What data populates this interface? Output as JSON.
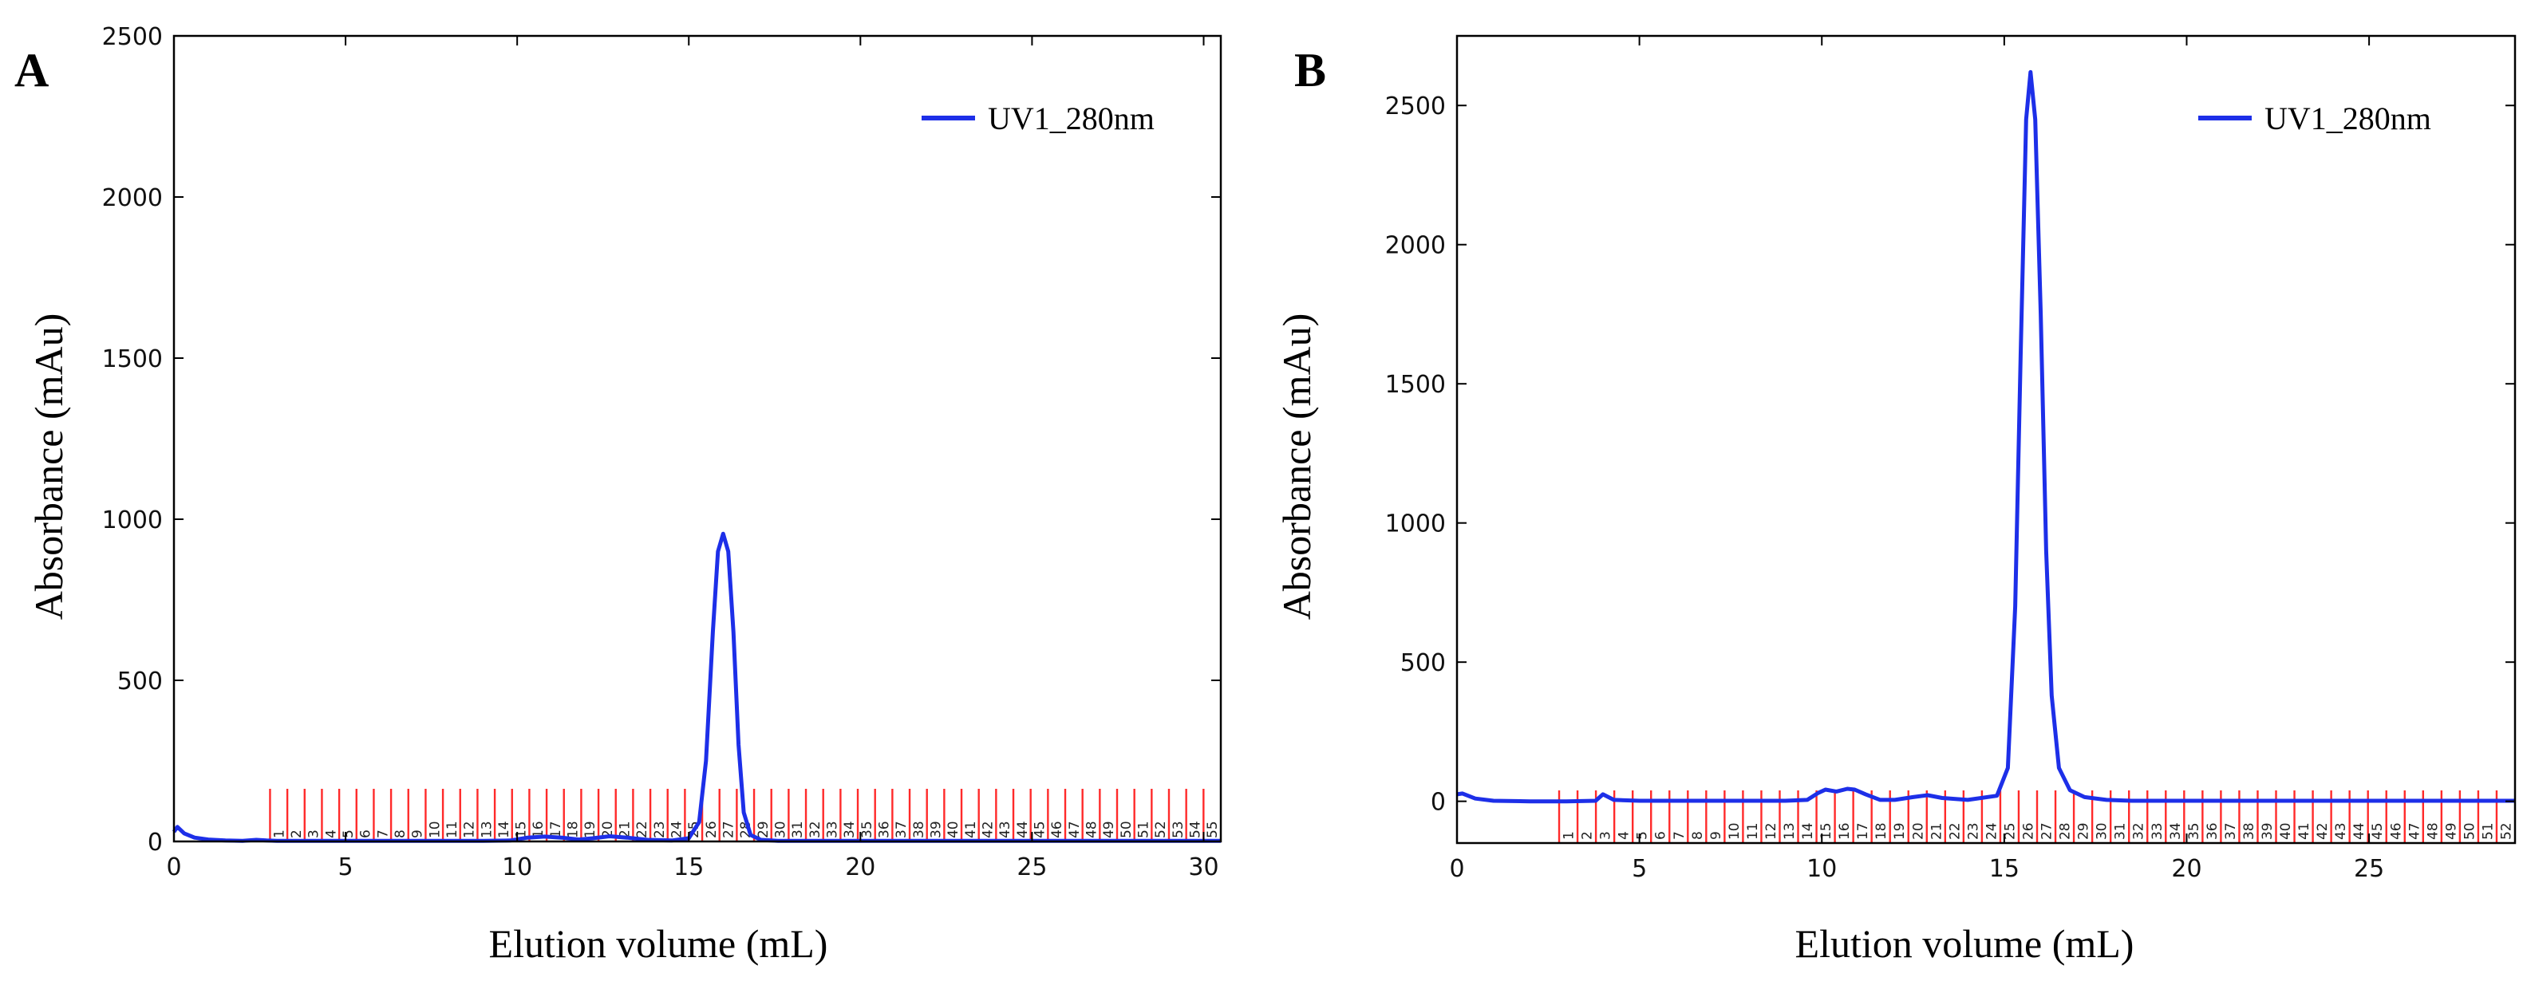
{
  "chart_data": [
    {
      "type": "line",
      "panel_label": "A",
      "xlabel": "Elution volume (mL)",
      "ylabel": "Absorbance (mAu)",
      "xlim": [
        0,
        30.5
      ],
      "ylim": [
        0,
        2500
      ],
      "xticks": [
        0,
        5,
        10,
        15,
        20,
        25,
        30
      ],
      "yticks": [
        0,
        500,
        1000,
        1500,
        2000,
        2500
      ],
      "series": [
        {
          "name": "UV1_280nm",
          "color": "#1d2fe8",
          "x": [
            0,
            0.1,
            0.3,
            0.6,
            1.0,
            1.5,
            2.0,
            2.4,
            2.7,
            3.0,
            4.0,
            5.0,
            6.0,
            7.0,
            8.0,
            9.0,
            9.8,
            10.3,
            10.8,
            11.3,
            11.8,
            12.2,
            12.7,
            13.2,
            13.8,
            14.5,
            15.0,
            15.3,
            15.5,
            15.7,
            15.85,
            16.0,
            16.15,
            16.3,
            16.45,
            16.6,
            16.8,
            17.1,
            17.6,
            18,
            20,
            22,
            24,
            26,
            28,
            30,
            30.5
          ],
          "y": [
            30,
            45,
            25,
            12,
            6,
            3,
            2,
            5,
            3,
            2,
            2,
            2,
            2,
            2,
            2,
            2,
            3,
            12,
            15,
            12,
            6,
            10,
            16,
            12,
            5,
            3,
            10,
            60,
            250,
            650,
            900,
            955,
            900,
            650,
            300,
            90,
            20,
            5,
            2,
            2,
            2,
            2,
            2,
            2,
            2,
            2,
            2
          ]
        }
      ],
      "fractions": {
        "start": 2.8,
        "end": 30.5,
        "count": 55,
        "labels": [
          "1",
          "2",
          "3",
          "4",
          "5",
          "6",
          "7",
          "8",
          "9",
          "10",
          "11",
          "12",
          "13",
          "14",
          "15",
          "16",
          "17",
          "18",
          "19",
          "20",
          "21",
          "22",
          "23",
          "24",
          "25",
          "26",
          "27",
          "28",
          "29",
          "30",
          "31",
          "32",
          "33",
          "34",
          "35",
          "36",
          "37",
          "38",
          "39",
          "40",
          "41",
          "42",
          "43",
          "44",
          "45",
          "46",
          "47",
          "48",
          "49",
          "50",
          "51",
          "52",
          "53",
          "54",
          "55"
        ]
      },
      "legend": {
        "label": "UV1_280nm",
        "position": "top-right"
      }
    },
    {
      "type": "line",
      "panel_label": "B",
      "xlabel": "Elution volume (mL)",
      "ylabel": "Absorbance (mAu)",
      "xlim": [
        0,
        29
      ],
      "ylim": [
        -150,
        2750
      ],
      "xticks": [
        0,
        5,
        10,
        15,
        20,
        25
      ],
      "yticks": [
        0,
        500,
        1000,
        1500,
        2000,
        2500
      ],
      "series": [
        {
          "name": "UV1_280nm",
          "color": "#1d2fe8",
          "x": [
            0,
            0.15,
            0.5,
            1.0,
            2.0,
            3.0,
            3.8,
            4.0,
            4.3,
            5.0,
            6.0,
            7.0,
            8.0,
            9.0,
            9.6,
            9.9,
            10.1,
            10.4,
            10.7,
            10.9,
            11.2,
            11.6,
            12.0,
            12.5,
            12.9,
            13.3,
            14.0,
            14.8,
            15.1,
            15.3,
            15.45,
            15.6,
            15.72,
            15.85,
            16.0,
            16.15,
            16.3,
            16.5,
            16.8,
            17.2,
            17.8,
            18.5,
            20,
            22,
            24,
            26,
            28,
            29
          ],
          "y": [
            25,
            28,
            10,
            2,
            0,
            0,
            2,
            25,
            5,
            2,
            2,
            2,
            2,
            2,
            5,
            30,
            42,
            35,
            45,
            42,
            25,
            5,
            5,
            15,
            22,
            12,
            5,
            20,
            120,
            700,
            1600,
            2450,
            2620,
            2450,
            1750,
            900,
            380,
            120,
            40,
            15,
            5,
            2,
            2,
            2,
            2,
            2,
            2,
            2
          ]
        }
      ],
      "fractions": {
        "start": 2.8,
        "end": 29,
        "count": 52,
        "labels": [
          "1",
          "2",
          "3",
          "4",
          "5",
          "6",
          "7",
          "8",
          "9",
          "10",
          "11",
          "12",
          "13",
          "14",
          "15",
          "16",
          "17",
          "18",
          "19",
          "20",
          "21",
          "22",
          "23",
          "24",
          "25",
          "26",
          "27",
          "28",
          "29",
          "30",
          "31",
          "32",
          "33",
          "34",
          "35",
          "36",
          "37",
          "38",
          "39",
          "40",
          "41",
          "42",
          "43",
          "44",
          "45",
          "46",
          "47",
          "48",
          "49",
          "50",
          "51",
          "52"
        ]
      },
      "legend": {
        "label": "UV1_280nm",
        "position": "top-right"
      }
    }
  ]
}
